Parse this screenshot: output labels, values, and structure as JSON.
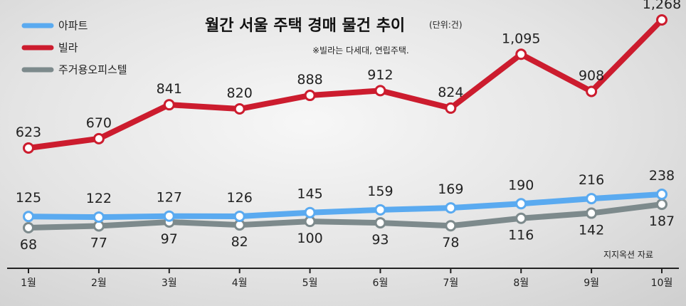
{
  "chart_data": {
    "type": "line",
    "title": "월간 서울 주택 경매 물건  추이",
    "unit": "(단위:건)",
    "note": "※빌라는 다세대, 연립주택.",
    "source": "지지옥션 자료",
    "categories": [
      "1월",
      "2월",
      "3월",
      "4월",
      "5월",
      "6월",
      "7월",
      "8월",
      "9월",
      "10월"
    ],
    "series": [
      {
        "name": "아파트",
        "color": "#5aaaf0",
        "values": [
          125,
          122,
          127,
          126,
          145,
          159,
          169,
          190,
          216,
          238
        ],
        "labels": [
          "125",
          "122",
          "127",
          "126",
          "145",
          "159",
          "169",
          "190",
          "216",
          "238"
        ]
      },
      {
        "name": "빌라",
        "color": "#cc1c2e",
        "values": [
          623,
          670,
          841,
          820,
          888,
          912,
          824,
          1095,
          908,
          1268
        ],
        "labels": [
          "623",
          "670",
          "841",
          "820",
          "888",
          "912",
          "824",
          "1,095",
          "908",
          "1,268"
        ]
      },
      {
        "name": "주거용오피스텔",
        "color": "#7d8a8c",
        "values": [
          68,
          77,
          97,
          82,
          100,
          93,
          78,
          116,
          142,
          187
        ],
        "labels": [
          "68",
          "77",
          "97",
          "82",
          "100",
          "93",
          "78",
          "116",
          "142",
          "187"
        ]
      }
    ],
    "legend_position": "top-left",
    "grid": false
  }
}
